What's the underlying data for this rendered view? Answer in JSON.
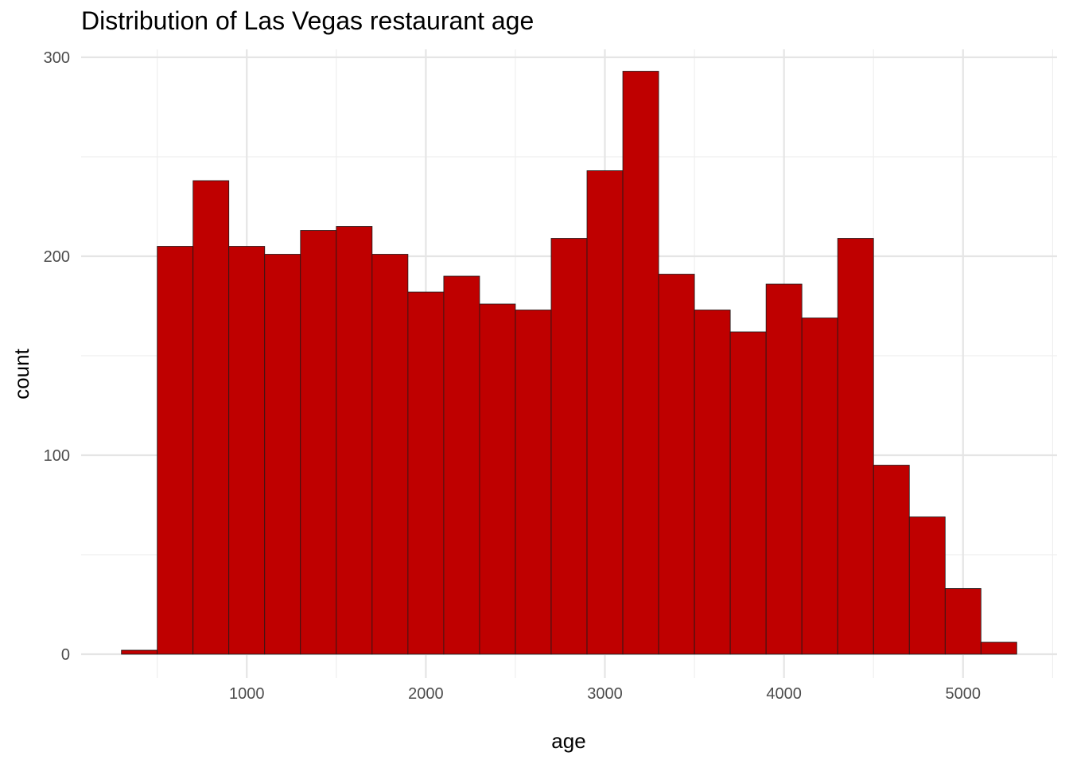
{
  "chart_data": {
    "type": "bar",
    "title": "Distribution of Las Vegas restaurant age",
    "xlabel": "age",
    "ylabel": "count",
    "xlim": [
      75,
      5525
    ],
    "ylim": [
      -12,
      304
    ],
    "x_ticks": [
      1000,
      2000,
      3000,
      4000,
      5000
    ],
    "y_ticks": [
      0,
      100,
      200,
      300
    ],
    "grid": true,
    "bin_width": 200,
    "bars": [
      {
        "x0": 300,
        "x1": 500,
        "count": 2
      },
      {
        "x0": 500,
        "x1": 700,
        "count": 205
      },
      {
        "x0": 700,
        "x1": 900,
        "count": 238
      },
      {
        "x0": 900,
        "x1": 1100,
        "count": 205
      },
      {
        "x0": 1100,
        "x1": 1300,
        "count": 201
      },
      {
        "x0": 1300,
        "x1": 1500,
        "count": 213
      },
      {
        "x0": 1500,
        "x1": 1700,
        "count": 215
      },
      {
        "x0": 1700,
        "x1": 1900,
        "count": 201
      },
      {
        "x0": 1900,
        "x1": 2100,
        "count": 182
      },
      {
        "x0": 2100,
        "x1": 2300,
        "count": 190
      },
      {
        "x0": 2300,
        "x1": 2500,
        "count": 176
      },
      {
        "x0": 2500,
        "x1": 2700,
        "count": 173
      },
      {
        "x0": 2700,
        "x1": 2900,
        "count": 209
      },
      {
        "x0": 2900,
        "x1": 3100,
        "count": 243
      },
      {
        "x0": 3100,
        "x1": 3300,
        "count": 293
      },
      {
        "x0": 3300,
        "x1": 3500,
        "count": 191
      },
      {
        "x0": 3500,
        "x1": 3700,
        "count": 173
      },
      {
        "x0": 3700,
        "x1": 3900,
        "count": 162
      },
      {
        "x0": 3900,
        "x1": 4100,
        "count": 186
      },
      {
        "x0": 4100,
        "x1": 4300,
        "count": 169
      },
      {
        "x0": 4300,
        "x1": 4500,
        "count": 209
      },
      {
        "x0": 4500,
        "x1": 4700,
        "count": 95
      },
      {
        "x0": 4700,
        "x1": 4900,
        "count": 69
      },
      {
        "x0": 4900,
        "x1": 5100,
        "count": 33
      },
      {
        "x0": 5100,
        "x1": 5300,
        "count": 6
      }
    ],
    "colors": {
      "bar_fill": "#bf0000",
      "bar_outline": "#1a1a1a",
      "grid_major": "#e5e5e5",
      "grid_minor": "#efefef"
    }
  }
}
